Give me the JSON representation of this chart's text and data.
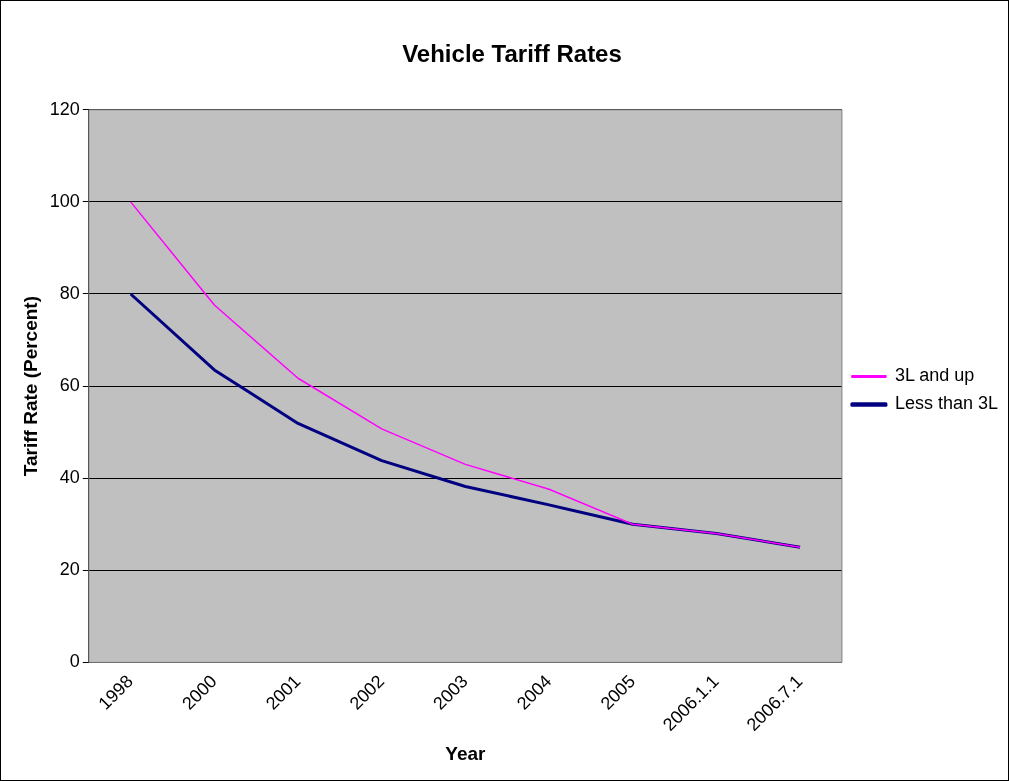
{
  "chart_data": {
    "type": "line",
    "title": "Vehicle Tariff Rates",
    "xlabel": "Year",
    "ylabel": "Tariff Rate (Percent)",
    "categories": [
      "1998",
      "2000",
      "2001",
      "2002",
      "2003",
      "2004",
      "2005",
      "2006.1.1",
      "2006.7.1"
    ],
    "series": [
      {
        "name": "Less than 3L",
        "color": "#000080",
        "values": [
          80,
          63.5,
          51.9,
          43.8,
          38.2,
          34.2,
          30,
          28,
          25
        ]
      },
      {
        "name": "3L and up",
        "color": "#ff00ff",
        "values": [
          100,
          77.6,
          61.7,
          50.7,
          43,
          37.6,
          30,
          28,
          25
        ]
      }
    ],
    "ylim": [
      0,
      120
    ],
    "yticks": [
      0,
      20,
      40,
      60,
      80,
      100,
      120
    ],
    "grid": "y",
    "legend": "right",
    "marker": "none",
    "line_style": "solid"
  }
}
